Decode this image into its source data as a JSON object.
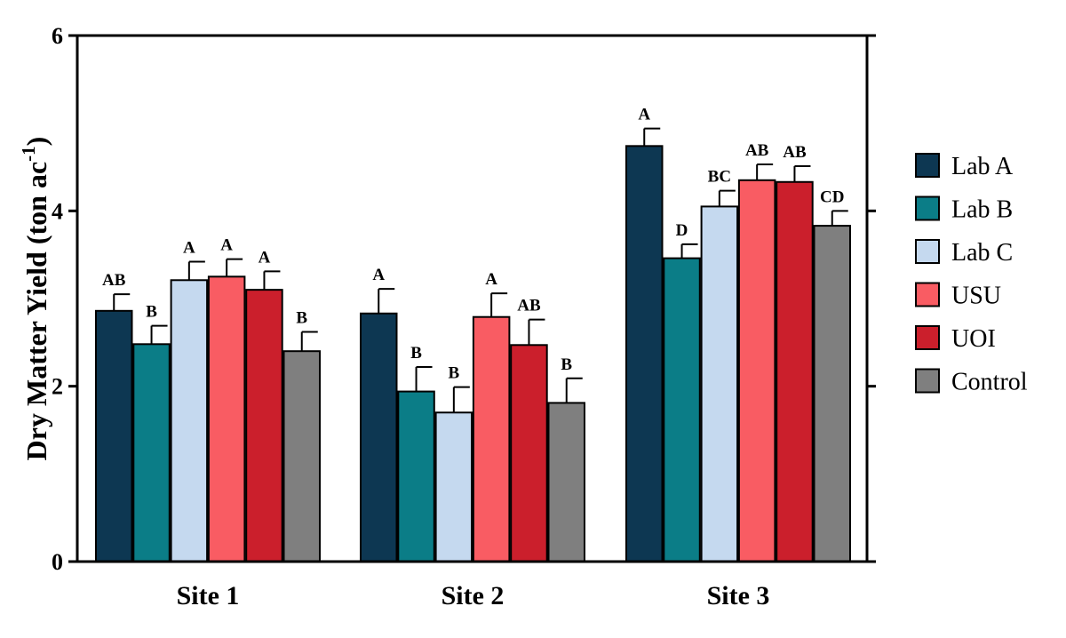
{
  "chart_data": {
    "type": "bar",
    "ylabel": "Dry Matter Yield (ton ac",
    "ylabel_superscript": "-1",
    "ylabel_suffix": ")",
    "xlabel": "",
    "ylim": [
      0,
      6
    ],
    "yticks": [
      0,
      2,
      4,
      6
    ],
    "categories": [
      "Site 1",
      "Site 2",
      "Site 3"
    ],
    "series": [
      {
        "name": "Lab A",
        "color": "#0d3752",
        "values": [
          2.86,
          2.83,
          4.74
        ],
        "errors": [
          0.19,
          0.28,
          0.2
        ],
        "letters": [
          "AB",
          "A",
          "A"
        ]
      },
      {
        "name": "Lab B",
        "color": "#0b7d87",
        "values": [
          2.48,
          1.94,
          3.46
        ],
        "errors": [
          0.21,
          0.28,
          0.16
        ],
        "letters": [
          "B",
          "B",
          "D"
        ]
      },
      {
        "name": "Lab C",
        "color": "#c5d9ef",
        "values": [
          3.21,
          1.7,
          4.05
        ],
        "errors": [
          0.21,
          0.29,
          0.18
        ],
        "letters": [
          "A",
          "B",
          "BC"
        ]
      },
      {
        "name": "USU",
        "color": "#f95c63",
        "values": [
          3.25,
          2.79,
          4.35
        ],
        "errors": [
          0.2,
          0.27,
          0.18
        ],
        "letters": [
          "A",
          "A",
          "AB"
        ]
      },
      {
        "name": "UOI",
        "color": "#cb1f2c",
        "values": [
          3.1,
          2.47,
          4.33
        ],
        "errors": [
          0.21,
          0.29,
          0.18
        ],
        "letters": [
          "A",
          "AB",
          "AB"
        ]
      },
      {
        "name": "Control",
        "color": "#7f7f7f",
        "values": [
          2.4,
          1.81,
          3.83
        ],
        "errors": [
          0.22,
          0.28,
          0.17
        ],
        "letters": [
          "B",
          "B",
          "CD"
        ]
      }
    ],
    "legend_position": "right"
  }
}
